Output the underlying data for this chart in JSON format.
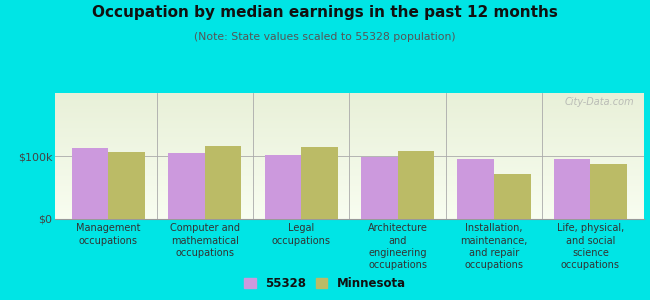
{
  "title": "Occupation by median earnings in the past 12 months",
  "subtitle": "(Note: State values scaled to 55328 population)",
  "background_color": "#00e5e5",
  "plot_bg_color_top": "#e8f0d8",
  "plot_bg_color_bottom": "#f8fdf0",
  "categories": [
    "Management\noccupations",
    "Computer and\nmathematical\noccupations",
    "Legal\noccupations",
    "Architecture\nand\nengineering\noccupations",
    "Installation,\nmaintenance,\nand repair\noccupations",
    "Life, physical,\nand social\nscience\noccupations"
  ],
  "values_55328": [
    113000,
    104000,
    102000,
    98000,
    95000,
    96000
  ],
  "values_mn": [
    106000,
    116000,
    114000,
    108000,
    72000,
    88000
  ],
  "color_55328": "#cc99dd",
  "color_mn": "#bbbb66",
  "ylim": [
    0,
    200000
  ],
  "yticks": [
    0,
    100000
  ],
  "ytick_labels": [
    "$0",
    "$100k"
  ],
  "legend_55328": "55328",
  "legend_mn": "Minnesota",
  "bar_width": 0.38,
  "watermark": "City-Data.com"
}
